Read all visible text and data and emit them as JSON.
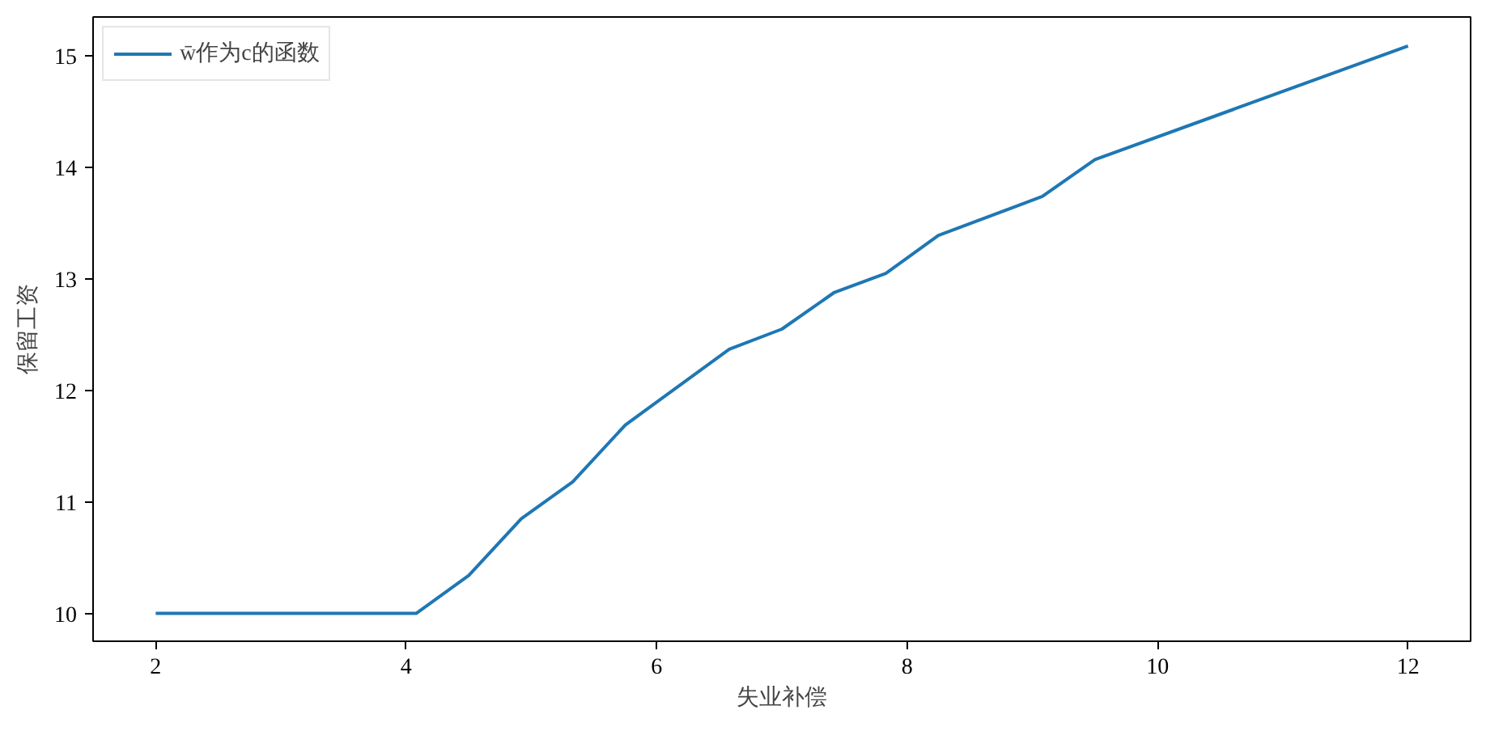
{
  "chart_data": {
    "type": "line",
    "xlabel": "失业补偿",
    "ylabel": "保留工资",
    "xlim": [
      1.5,
      12.5
    ],
    "ylim": [
      9.75,
      15.35
    ],
    "xticks": [
      2,
      4,
      6,
      8,
      10,
      12
    ],
    "yticks": [
      10,
      11,
      12,
      13,
      14,
      15
    ],
    "legend": "top left",
    "series": [
      {
        "name": "w̄作为c的函数",
        "color": "#1f77b4",
        "x": [
          2,
          4.08,
          4.5,
          4.92,
          5.33,
          5.75,
          6.58,
          7.0,
          7.42,
          7.83,
          8.25,
          9.08,
          9.5,
          12
        ],
        "values": [
          10,
          10,
          10.34,
          10.85,
          11.18,
          11.69,
          12.37,
          12.55,
          12.88,
          13.05,
          13.39,
          13.74,
          14.07,
          15.09
        ]
      }
    ]
  }
}
